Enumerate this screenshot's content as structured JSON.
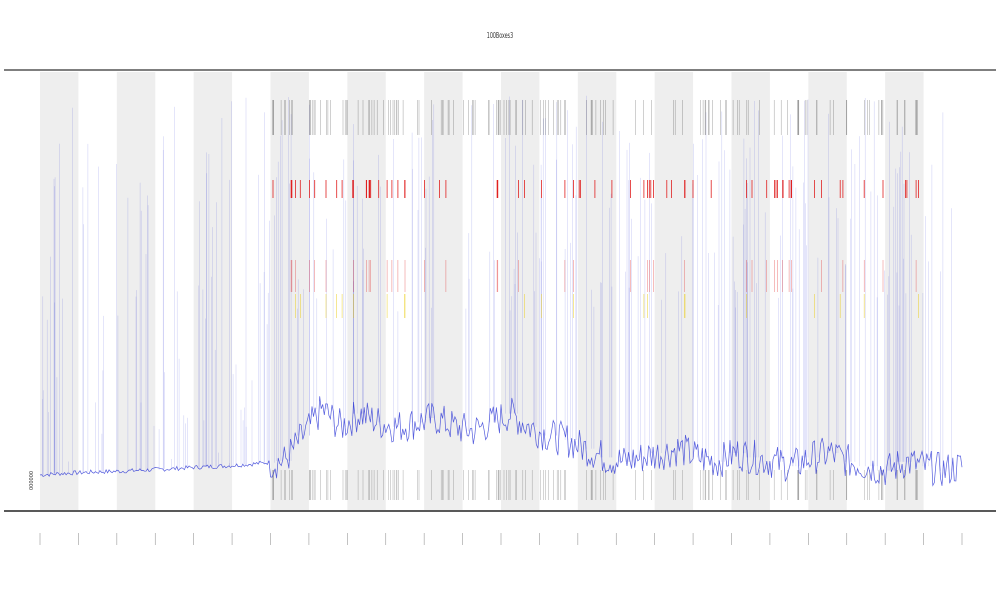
{
  "chart_data": {
    "type": "line",
    "title": "100Boxes3",
    "xlabel": "",
    "ylabel": "",
    "series_label": "000000",
    "segments": 24,
    "shaded_segments": [
      1,
      3,
      5,
      7,
      9,
      11,
      13,
      15,
      17,
      19,
      21,
      23
    ],
    "ylim": [
      0,
      1
    ],
    "grid": false,
    "legend": "none",
    "x_ticks": [
      "",
      "",
      "",
      "",
      "",
      "",
      "",
      "",
      "",
      "",
      "",
      "",
      "",
      "",
      "",
      "",
      "",
      "",
      "",
      "",
      "",
      "",
      "",
      "",
      ""
    ],
    "series": [
      {
        "name": "",
        "color": "#2a35d6",
        "values": [
          0.08,
          0.083,
          0.085,
          0.087,
          0.088,
          0.09,
          0.092,
          0.094,
          0.097,
          0.099,
          0.101,
          0.104,
          0.108,
          0.112,
          0.17,
          0.23,
          0.19,
          0.22,
          0.2,
          0.19,
          0.2,
          0.21,
          0.19,
          0.18,
          0.2,
          0.22,
          0.19,
          0.17,
          0.16,
          0.14,
          0.12,
          0.11,
          0.12,
          0.13,
          0.14,
          0.12,
          0.11,
          0.13,
          0.12,
          0.11,
          0.1,
          0.12,
          0.13,
          0.11,
          0.1,
          0.09,
          0.11,
          0.1,
          0.09,
          0.1
        ]
      }
    ],
    "band_colors": {
      "high": "#e02020",
      "mid": "#e8c800",
      "low": "#2a35d6",
      "ticks": "#444444",
      "shade": "#eeeeee",
      "axis": "#555555"
    }
  }
}
